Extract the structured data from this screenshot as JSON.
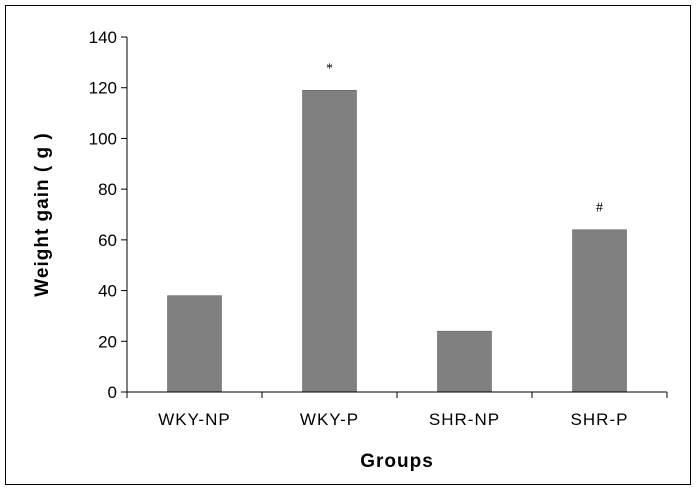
{
  "chart_data": {
    "type": "bar",
    "categories": [
      "WKY-NP",
      "WKY-P",
      "SHR-NP",
      "SHR-P"
    ],
    "values": [
      38,
      119,
      24,
      64
    ],
    "annotations": [
      "",
      "*",
      "",
      "#"
    ],
    "xlabel": "Groups",
    "ylabel": "Weight gain ( g )",
    "ylim": [
      0,
      140
    ],
    "yticks": [
      "0",
      "20",
      "40",
      "60",
      "80",
      "100",
      "120",
      "140"
    ],
    "bar_color": "#808080",
    "grid": false,
    "legend": false
  }
}
